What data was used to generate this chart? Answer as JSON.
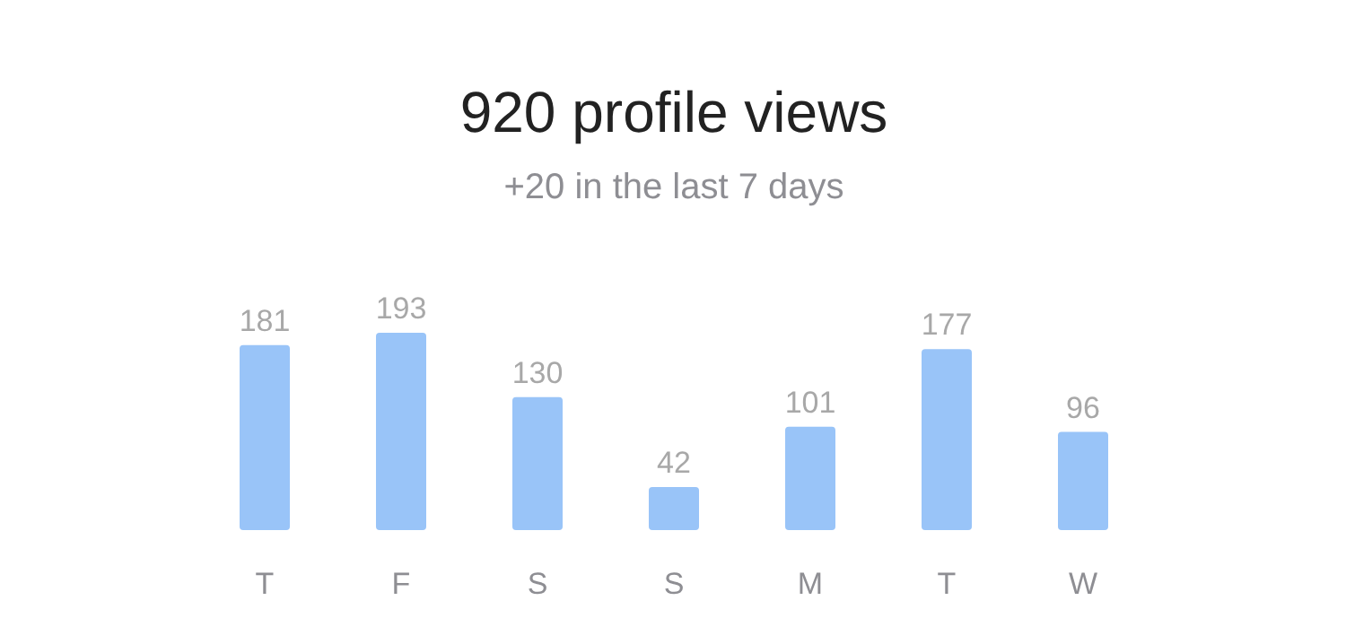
{
  "chart_data": {
    "type": "bar",
    "title": "920 profile views",
    "subtitle": "+20 in the last 7 days",
    "categories": [
      "T",
      "F",
      "S",
      "S",
      "M",
      "T",
      "W"
    ],
    "values": [
      181,
      193,
      130,
      42,
      101,
      177,
      96
    ],
    "color": "#99c4f8",
    "data_labels": true,
    "grid": false
  }
}
